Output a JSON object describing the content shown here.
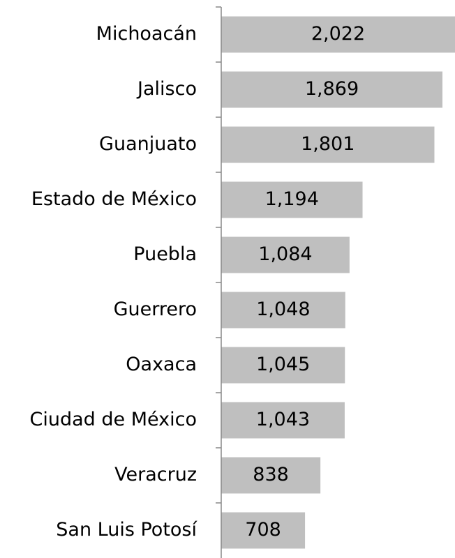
{
  "chart_data": {
    "type": "barh",
    "categories": [
      "Michoacán",
      "Jalisco",
      "Guanjuato",
      "Estado de México",
      "Puebla",
      "Guerrero",
      "Oaxaca",
      "Ciudad de México",
      "Veracruz",
      "San Luis Potosí"
    ],
    "values": [
      2022,
      1869,
      1801,
      1194,
      1084,
      1048,
      1045,
      1043,
      838,
      708
    ],
    "value_labels": [
      "2,022",
      "1,869",
      "1,801",
      "1,194",
      "1,084",
      "1,048",
      "1,045",
      "1,043",
      "838",
      "708"
    ],
    "color": "#bfbfbf",
    "xlim": [
      0,
      1975
    ]
  }
}
